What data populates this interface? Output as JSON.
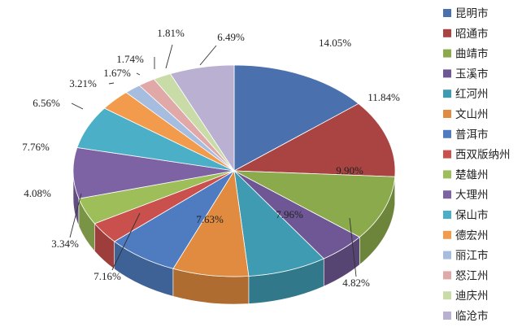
{
  "chart_data": {
    "type": "pie",
    "title": "",
    "labels": [
      "昆明市",
      "昭通市",
      "曲靖市",
      "玉溪市",
      "红河州",
      "文山州",
      "普洱市",
      "西双版纳州",
      "楚雄州",
      "大理州",
      "保山市",
      "德宏州",
      "丽江市",
      "怒江州",
      "迪庆州",
      "临沧市"
    ],
    "values": [
      14.05,
      11.84,
      9.9,
      4.82,
      7.96,
      7.63,
      7.16,
      3.34,
      4.08,
      7.76,
      6.56,
      3.21,
      1.67,
      1.74,
      1.81,
      6.49
    ],
    "value_labels": [
      "14.05%",
      "11.84%",
      "9.90%",
      "4.82%",
      "7.96%",
      "7.63%",
      "7.16%",
      "3.34%",
      "4.08%",
      "7.76%",
      "6.56%",
      "3.21%",
      "1.67%",
      "1.74%",
      "1.81%",
      "6.49%"
    ],
    "colors": [
      "#4A71AE",
      "#A94442",
      "#8BAA4B",
      "#6E5794",
      "#3F9BB1",
      "#E08B3F",
      "#4F7CC0",
      "#C9504D",
      "#9DBE59",
      "#7D62A4",
      "#4BAFC8",
      "#F29B4D",
      "#A7BDDF",
      "#E0A9A8",
      "#C9DCA8",
      "#BAB0D2"
    ],
    "legend_position": "right",
    "style": "3d-tilted"
  }
}
